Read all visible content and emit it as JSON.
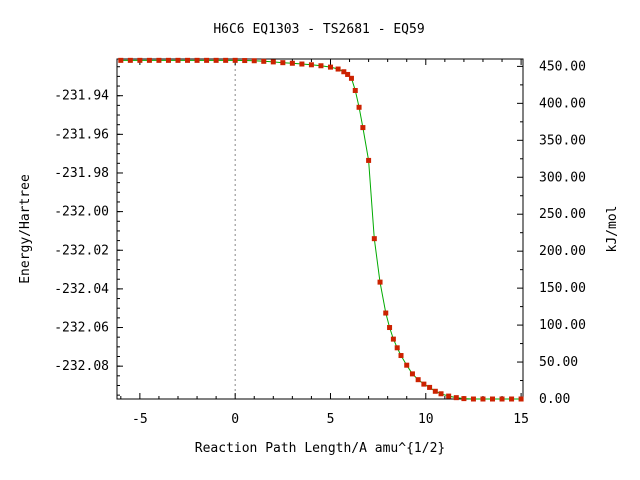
{
  "chart_data": {
    "type": "line",
    "title": "H6C6   EQ1303 - TS2681 - EQ59",
    "xlabel": "Reaction Path Length/A amu^{1/2}",
    "ylabel": "Energy/Hartree",
    "y2label": "kJ/mol",
    "xlim": [
      -6.2,
      15.1
    ],
    "ylim": [
      -232.097,
      -231.921
    ],
    "y2lim": [
      0,
      460
    ],
    "grid": false,
    "legend": "none",
    "marker_line_at_x": 0,
    "x_ticks": [
      -5,
      0,
      5,
      10,
      15
    ],
    "x_tick_labels": [
      "-5",
      "0",
      "5",
      "10",
      "15"
    ],
    "y_ticks": [
      -231.94,
      -231.96,
      -231.98,
      -232.0,
      -232.02,
      -232.04,
      -232.06,
      -232.08
    ],
    "y_tick_labels": [
      "-231.94",
      "-231.96",
      "-231.98",
      "-232.00",
      "-232.02",
      "-232.04",
      "-232.06",
      "-232.08"
    ],
    "y2_ticks": [
      450,
      400,
      350,
      300,
      250,
      200,
      150,
      100,
      50,
      0
    ],
    "y2_tick_labels": [
      "450.00",
      "400.00",
      "350.00",
      "300.00",
      "250.00",
      "200.00",
      "150.00",
      "100.00",
      "50.00",
      "0.00"
    ],
    "series": [
      {
        "line_color": "#00aa00",
        "marker_color": "#cc2200",
        "x": [
          -6.0,
          -5.5,
          -5.0,
          -4.5,
          -4.0,
          -3.5,
          -3.0,
          -2.5,
          -2.0,
          -1.5,
          -1.0,
          -0.5,
          0.0,
          0.5,
          1.0,
          1.5,
          2.0,
          2.5,
          3.0,
          3.5,
          4.0,
          4.5,
          5.0,
          5.4,
          5.7,
          5.9,
          6.1,
          6.3,
          6.5,
          6.7,
          7.0,
          7.3,
          7.6,
          7.9,
          8.1,
          8.3,
          8.5,
          8.7,
          9.0,
          9.3,
          9.6,
          9.9,
          10.2,
          10.5,
          10.8,
          11.2,
          11.6,
          12.0,
          12.5,
          13.0,
          13.5,
          14.0,
          14.5,
          15.0
        ],
        "y": [
          -231.9217,
          -231.9217,
          -231.9217,
          -231.9217,
          -231.9217,
          -231.9217,
          -231.9217,
          -231.9217,
          -231.9217,
          -231.9217,
          -231.9217,
          -231.9217,
          -231.9217,
          -231.9218,
          -231.9219,
          -231.9222,
          -231.9225,
          -231.9229,
          -231.9232,
          -231.9236,
          -231.924,
          -231.9245,
          -231.9252,
          -231.9262,
          -231.9276,
          -231.929,
          -231.931,
          -231.9373,
          -231.946,
          -231.9565,
          -231.9735,
          -232.014,
          -232.0365,
          -232.0525,
          -232.06,
          -232.066,
          -232.0705,
          -232.0745,
          -232.0795,
          -232.084,
          -232.087,
          -232.0893,
          -232.091,
          -232.093,
          -232.0943,
          -232.0955,
          -232.0963,
          -232.0968,
          -232.097,
          -232.097,
          -232.097,
          -232.097,
          -232.097,
          -232.097
        ]
      }
    ]
  }
}
